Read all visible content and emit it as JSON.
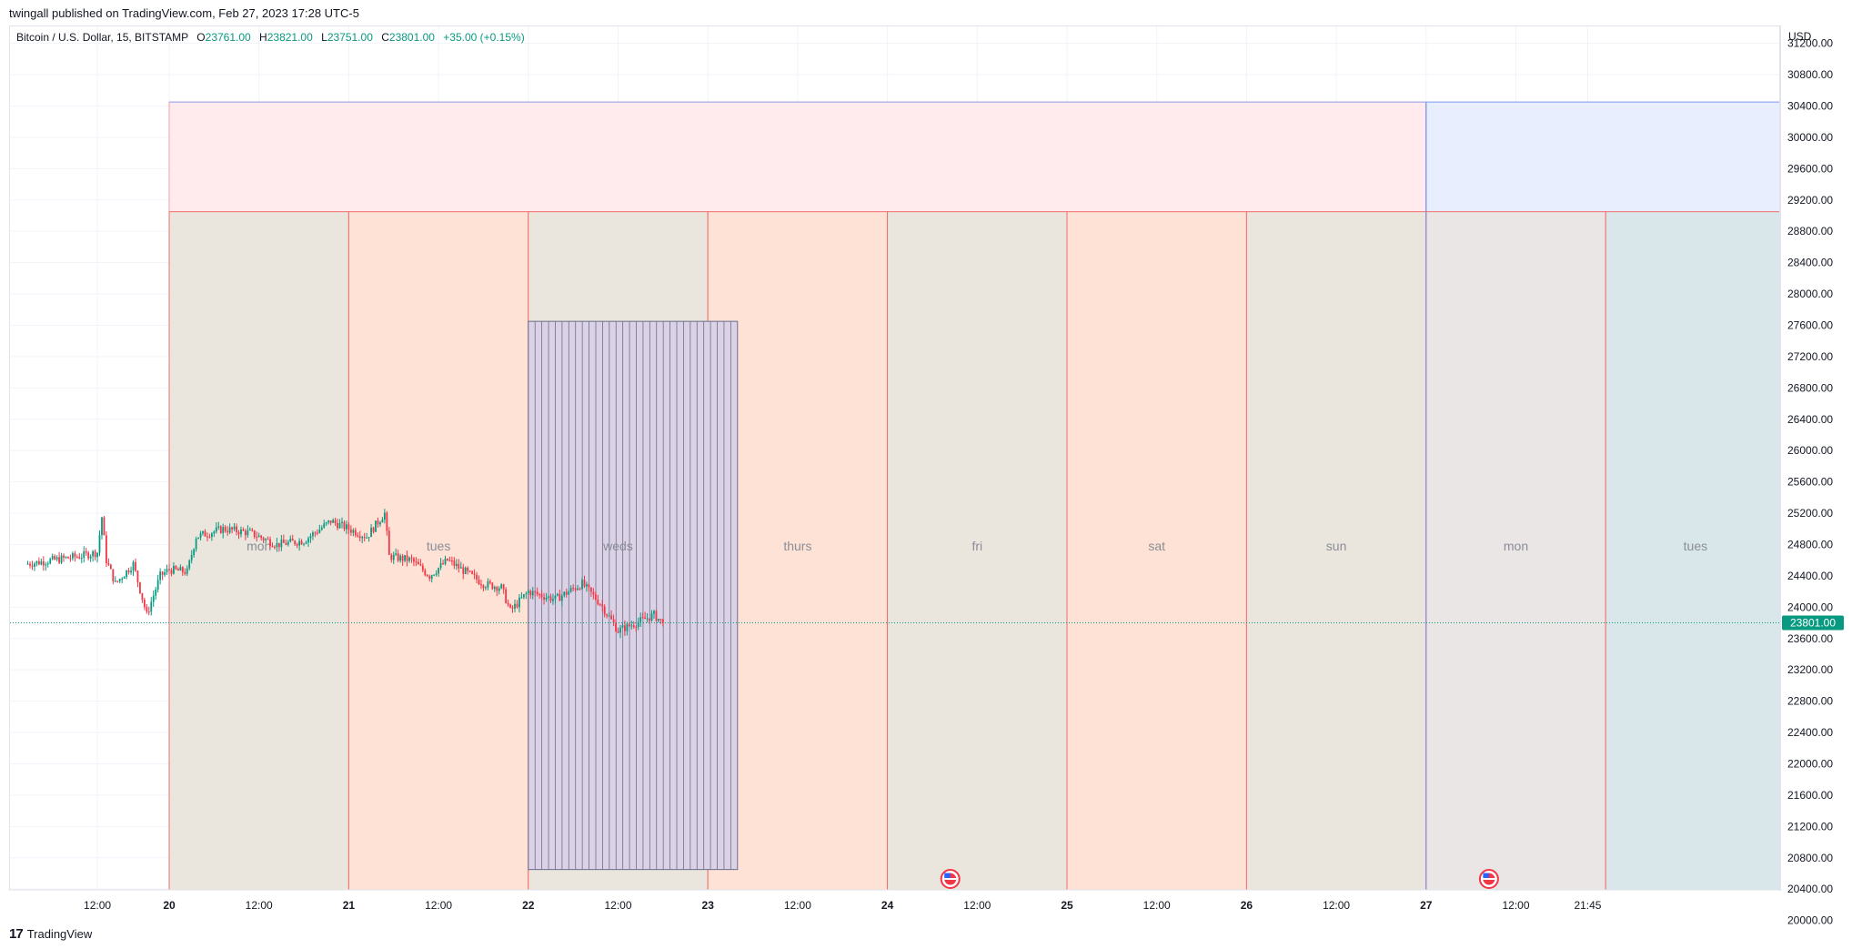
{
  "header": {
    "publisher_line": "twingall published on TradingView.com, Feb 27, 2023 17:28 UTC-5"
  },
  "legend": {
    "symbol": "Bitcoin / U.S. Dollar, 15, BITSTAMP",
    "open_label": "O",
    "open": "23761.00",
    "high_label": "H",
    "high": "23821.00",
    "low_label": "L",
    "low": "23751.00",
    "close_label": "C",
    "close": "23801.00",
    "change": "+35.00 (+0.15%)"
  },
  "axis": {
    "currency": "USD",
    "last_price_tag": "23801.00"
  },
  "footer": {
    "brand": "TradingView",
    "logo_glyph": "17"
  },
  "colors": {
    "up": "#089981",
    "down": "#f23645",
    "accent": "#2962ff"
  },
  "chart_data": {
    "type": "candlestick",
    "symbol": "BTCUSD",
    "exchange": "BITSTAMP",
    "interval": "15",
    "ylim": [
      19800,
      31400
    ],
    "y_ticks": [
      20000,
      20400,
      20800,
      21200,
      21600,
      22000,
      22400,
      22800,
      23200,
      23600,
      24000,
      24400,
      24800,
      25200,
      25600,
      26000,
      26400,
      26800,
      27200,
      27600,
      28000,
      28400,
      28800,
      29200,
      29600,
      30000,
      30400,
      30800,
      31200
    ],
    "y_tick_labels": [
      "20000.00",
      "20400.00",
      "20800.00",
      "21200.00",
      "21600.00",
      "22000.00",
      "22400.00",
      "22800.00",
      "23200.00",
      "23600.00",
      "24000.00",
      "24400.00",
      "24800.00",
      "25200.00",
      "25600.00",
      "26000.00",
      "26400.00",
      "26800.00",
      "27200.00",
      "27600.00",
      "28000.00",
      "28400.00",
      "28800.00",
      "29200.00",
      "29600.00",
      "30000.00",
      "30400.00",
      "30800.00",
      "31200.00"
    ],
    "xlim_hours": [
      -16,
      182
    ],
    "x_ticks": [
      {
        "h": -8,
        "label": "12:00"
      },
      {
        "h": 0,
        "label": "20"
      },
      {
        "h": 10,
        "label": "12:00"
      },
      {
        "h": 20,
        "label": "21"
      },
      {
        "h": 30,
        "label": "12:00"
      },
      {
        "h": 40,
        "label": "22"
      },
      {
        "h": 50,
        "label": "12:00"
      },
      {
        "h": 60,
        "label": "23"
      },
      {
        "h": 70,
        "label": "12:00"
      },
      {
        "h": 80,
        "label": "24"
      },
      {
        "h": 90,
        "label": "12:00"
      },
      {
        "h": 100,
        "label": "25"
      },
      {
        "h": 110,
        "label": "12:00"
      },
      {
        "h": 120,
        "label": "26"
      },
      {
        "h": 130,
        "label": "12:00"
      },
      {
        "h": 140,
        "label": "27"
      },
      {
        "h": 150,
        "label": "12:00"
      },
      {
        "h": 158,
        "label": "21:45"
      }
    ],
    "last_price": 23801,
    "price_path": [
      [
        -16,
        24550
      ],
      [
        -13,
        24600
      ],
      [
        -10,
        24650
      ],
      [
        -8,
        24700
      ],
      [
        -7.5,
        25150
      ],
      [
        -7,
        24600
      ],
      [
        -6,
        24300
      ],
      [
        -4,
        24550
      ],
      [
        -2.5,
        23900
      ],
      [
        -1,
        24400
      ],
      [
        0,
        24480
      ],
      [
        2,
        24450
      ],
      [
        3,
        24900
      ],
      [
        6,
        25000
      ],
      [
        9,
        24950
      ],
      [
        12,
        24800
      ],
      [
        15,
        24850
      ],
      [
        18,
        25100
      ],
      [
        22,
        24900
      ],
      [
        24,
        25200
      ],
      [
        24.5,
        24650
      ],
      [
        27,
        24600
      ],
      [
        29,
        24400
      ],
      [
        31,
        24600
      ],
      [
        33,
        24450
      ],
      [
        35,
        24300
      ],
      [
        37,
        24250
      ],
      [
        38,
        23950
      ],
      [
        40,
        24200
      ],
      [
        43,
        24100
      ],
      [
        46,
        24300
      ],
      [
        48,
        24050
      ],
      [
        50,
        23700
      ],
      [
        52,
        23800
      ],
      [
        54,
        23900
      ],
      [
        55,
        23801
      ]
    ],
    "zones": {
      "outer": {
        "h_start": 0,
        "h_end": 140,
        "price_top": 30450,
        "price_bottom": 19900,
        "color": "#ffebee"
      },
      "outer_next": {
        "h_start": 140,
        "h_end": 180,
        "price_top": 30450,
        "price_bottom": 19900,
        "color": "#e8eefe"
      },
      "day_boxes": [
        {
          "h_start": 0,
          "h_end": 20,
          "label": "mon",
          "color": "#ebe6dd"
        },
        {
          "h_start": 20,
          "h_end": 40,
          "label": "tues",
          "color": "#ffe2d6"
        },
        {
          "h_start": 40,
          "h_end": 60,
          "label": "weds",
          "color": "#ebe6dd"
        },
        {
          "h_start": 60,
          "h_end": 80,
          "label": "thurs",
          "color": "#ffe2d6"
        },
        {
          "h_start": 80,
          "h_end": 100,
          "label": "fri",
          "color": "#ebe6dd"
        },
        {
          "h_start": 100,
          "h_end": 120,
          "label": "sat",
          "color": "#ffe2d6"
        },
        {
          "h_start": 120,
          "h_end": 140,
          "label": "sun",
          "color": "#ebe6dd"
        },
        {
          "h_start": 140,
          "h_end": 160,
          "label": "mon",
          "color": "#ebe6e6"
        },
        {
          "h_start": 160,
          "h_end": 180,
          "label": "tues",
          "color": "#d9e7ea"
        }
      ],
      "day_box_price_top": 29050,
      "grid_block": {
        "h_start": 40,
        "h_end": 63.3,
        "price_top": 27650,
        "price_bottom": 20650,
        "lines": 31,
        "color": "#dcd2e6"
      }
    },
    "event_markers_hours": [
      87,
      147
    ]
  }
}
